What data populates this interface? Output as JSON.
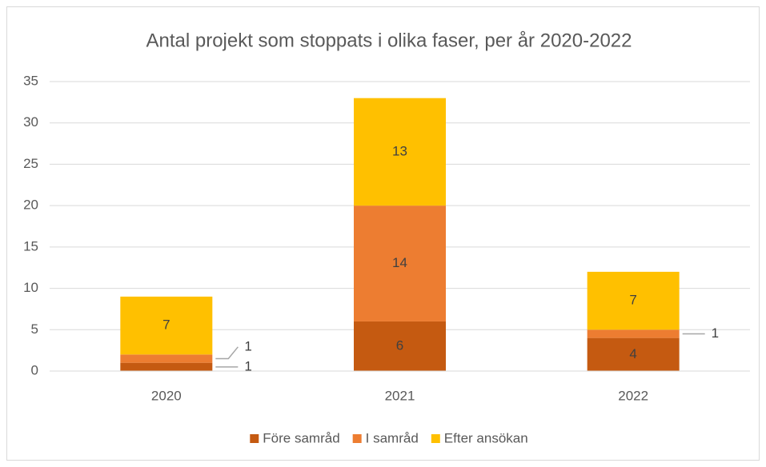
{
  "chart_data": {
    "type": "bar",
    "stacked": true,
    "title": "Antal projekt som stoppats i olika faser, per år 2020-2022",
    "categories": [
      "2020",
      "2021",
      "2022"
    ],
    "series": [
      {
        "name": "Före samråd",
        "color": "#c55a11",
        "values": [
          1,
          6,
          4
        ]
      },
      {
        "name": "I samråd",
        "color": "#ed7d31",
        "values": [
          1,
          14,
          1
        ]
      },
      {
        "name": "Efter ansökan",
        "color": "#ffc000",
        "values": [
          7,
          13,
          7
        ]
      }
    ],
    "ylim": [
      0,
      35
    ],
    "yticks": [
      0,
      5,
      10,
      15,
      20,
      25,
      30,
      35
    ],
    "grid": true,
    "legend": "bottom"
  }
}
